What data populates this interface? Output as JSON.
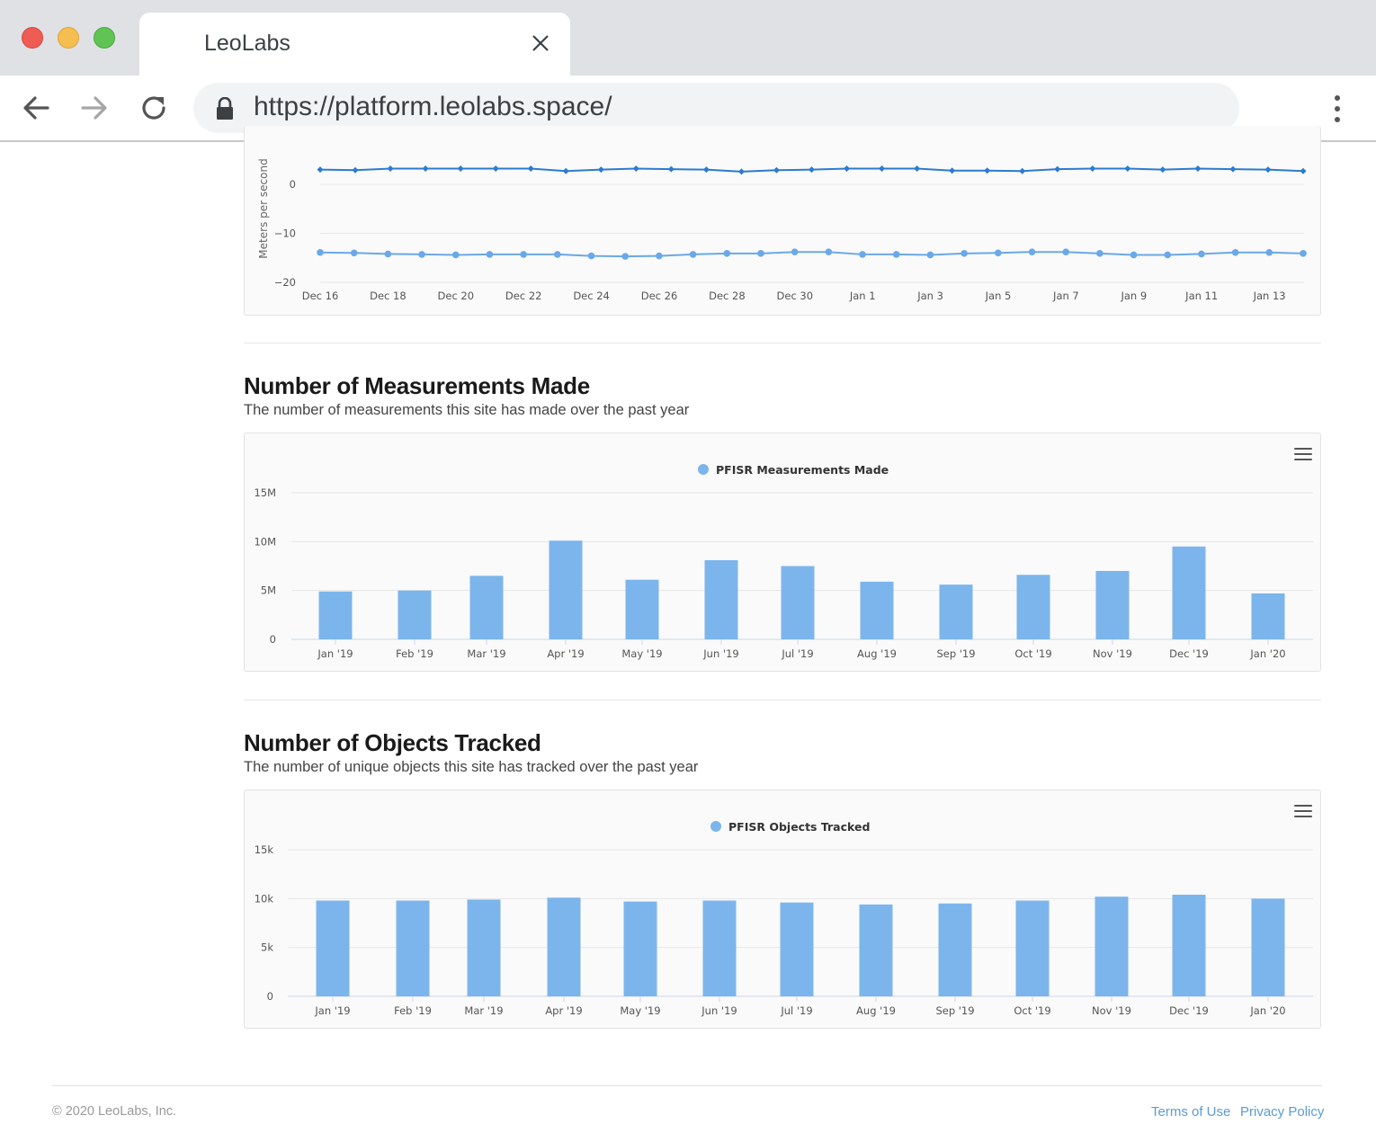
{
  "browser": {
    "tab_title": "LeoLabs",
    "url": "https://platform.leolabs.space/"
  },
  "velocity_chart": {
    "ylabel": "Meters per second",
    "yticks": [
      0,
      -10,
      -20
    ],
    "x_labels": [
      "Dec 16",
      "Dec 18",
      "Dec 20",
      "Dec 22",
      "Dec 24",
      "Dec 26",
      "Dec 28",
      "Dec 30",
      "Jan 1",
      "Jan 3",
      "Jan 5",
      "Jan 7",
      "Jan 9",
      "Jan 11",
      "Jan 13"
    ]
  },
  "measurements_section": {
    "title": "Number of Measurements Made",
    "subtitle": "The number of measurements this site has made over the past year",
    "menu_icon": "hamburger-menu-icon"
  },
  "objects_section": {
    "title": "Number of Objects Tracked",
    "subtitle": "The number of unique objects this site has tracked over the past year",
    "menu_icon": "hamburger-menu-icon"
  },
  "footer": {
    "copyright": "© 2020 LeoLabs, Inc.",
    "terms": "Terms of Use",
    "privacy": "Privacy Policy"
  },
  "chart_data": [
    {
      "type": "line",
      "ylabel": "Meters per second",
      "ylim": [
        -20,
        5
      ],
      "x_tick_labels": [
        "Dec 16",
        "Dec 18",
        "Dec 20",
        "Dec 22",
        "Dec 24",
        "Dec 26",
        "Dec 28",
        "Dec 30",
        "Jan 1",
        "Jan 3",
        "Jan 5",
        "Jan 7",
        "Jan 9",
        "Jan 11",
        "Jan 13"
      ],
      "color_series_1": "#2b7bd1",
      "color_series_2": "#6aa8e8",
      "series": [
        {
          "values": [
            3.0,
            2.9,
            3.2,
            3.2,
            3.2,
            3.2,
            3.2,
            2.7,
            3.0,
            3.2,
            3.1,
            3.0,
            2.6,
            2.9,
            3.0,
            3.2,
            3.2,
            3.2,
            2.8,
            2.8,
            2.7,
            3.1,
            3.2,
            3.2,
            3.0,
            3.2,
            3.1,
            3.0,
            2.7
          ]
        },
        {
          "values": [
            -13.9,
            -14.0,
            -14.2,
            -14.3,
            -14.4,
            -14.3,
            -14.3,
            -14.3,
            -14.6,
            -14.7,
            -14.6,
            -14.3,
            -14.1,
            -14.1,
            -13.8,
            -13.8,
            -14.3,
            -14.3,
            -14.4,
            -14.1,
            -14.0,
            -13.8,
            -13.8,
            -14.1,
            -14.4,
            -14.4,
            -14.2,
            -13.9,
            -13.9,
            -14.1
          ]
        }
      ]
    },
    {
      "type": "bar",
      "legend": [
        "PFISR Measurements Made"
      ],
      "legend_position": "top-center",
      "categories": [
        "Jan '19",
        "Feb '19",
        "Mar '19",
        "Apr '19",
        "May '19",
        "Jun '19",
        "Jul '19",
        "Aug '19",
        "Sep '19",
        "Oct '19",
        "Nov '19",
        "Dec '19",
        "Jan '20"
      ],
      "yticks": [
        "0",
        "5M",
        "10M",
        "15M"
      ],
      "ylim": [
        0,
        15000000
      ],
      "color": "#7cb5ec",
      "series": [
        {
          "name": "PFISR Measurements Made",
          "values": [
            4900000,
            5000000,
            6500000,
            10100000,
            6100000,
            8100000,
            7500000,
            5900000,
            5600000,
            6600000,
            7000000,
            9500000,
            4700000
          ]
        }
      ]
    },
    {
      "type": "bar",
      "legend": [
        "PFISR Objects Tracked"
      ],
      "legend_position": "top-center",
      "categories": [
        "Jan '19",
        "Feb '19",
        "Mar '19",
        "Apr '19",
        "May '19",
        "Jun '19",
        "Jul '19",
        "Aug '19",
        "Sep '19",
        "Oct '19",
        "Nov '19",
        "Dec '19",
        "Jan '20"
      ],
      "yticks": [
        "0",
        "5k",
        "10k",
        "15k"
      ],
      "ylim": [
        0,
        15000
      ],
      "color": "#7cb5ec",
      "series": [
        {
          "name": "PFISR Objects Tracked",
          "values": [
            9800,
            9800,
            9900,
            10100,
            9700,
            9800,
            9600,
            9400,
            9500,
            9800,
            10200,
            10400,
            10000
          ]
        }
      ]
    }
  ]
}
